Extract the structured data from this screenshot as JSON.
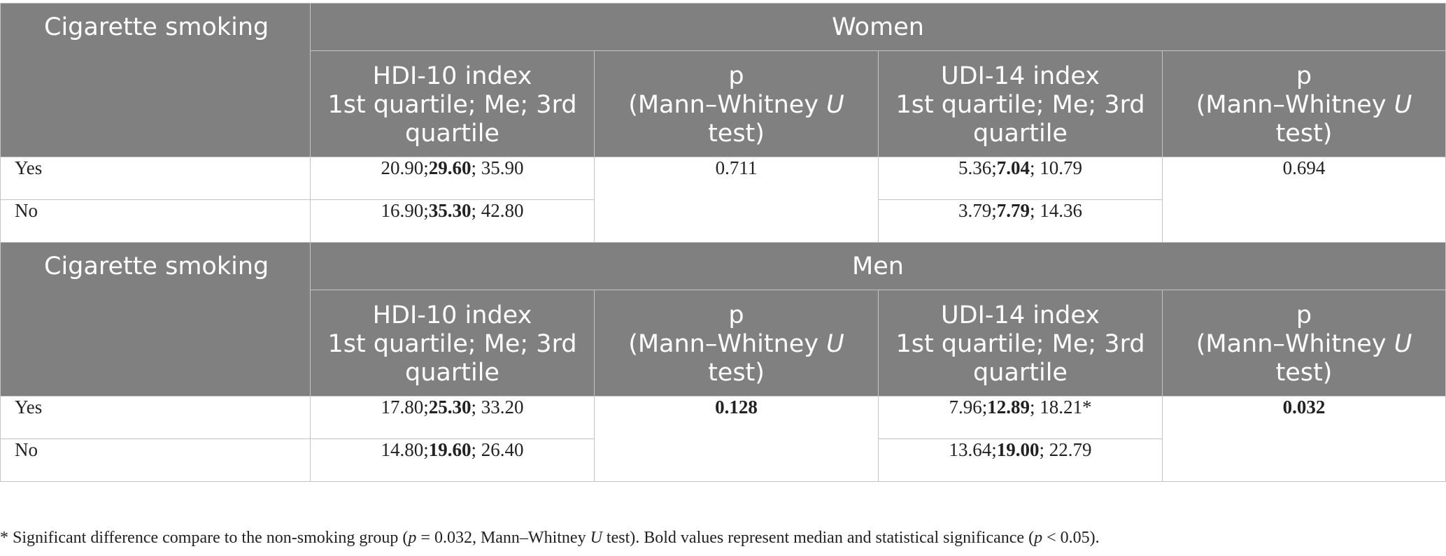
{
  "row_header": "Cigarette smoking",
  "sub_headers": {
    "hdi": [
      "HDI-10 index",
      "1st quartile; Me; 3rd",
      "quartile"
    ],
    "p": [
      "p",
      "(Mann–Whitney ",
      "U",
      "",
      "test)"
    ],
    "udi": [
      "UDI-14 index",
      "1st quartile; Me; 3rd",
      "quartile"
    ]
  },
  "sections": [
    {
      "group": "Women",
      "p_hdi": {
        "text": "0.711",
        "bold": false
      },
      "p_udi": {
        "text": "0.694",
        "bold": false
      },
      "rows": [
        {
          "label": "Yes",
          "hdi": {
            "q1": "20.90;",
            "me": "29.60",
            "q3": "; 35.90"
          },
          "udi": {
            "q1": "5.36;",
            "me": "7.04",
            "q3": "; 10.79"
          }
        },
        {
          "label": "No",
          "hdi": {
            "q1": "16.90;",
            "me": "35.30",
            "q3": "; 42.80"
          },
          "udi": {
            "q1": "3.79;",
            "me": "7.79",
            "q3": "; 14.36"
          }
        }
      ]
    },
    {
      "group": "Men",
      "p_hdi": {
        "text": "0.128",
        "bold": true
      },
      "p_udi": {
        "text": "0.032",
        "bold": true
      },
      "rows": [
        {
          "label": "Yes",
          "hdi": {
            "q1": "17.80;",
            "me": "25.30",
            "q3": "; 33.20"
          },
          "udi": {
            "q1": "7.96;",
            "me": "12.89",
            "q3": "; 18.21*"
          }
        },
        {
          "label": "No",
          "hdi": {
            "q1": "14.80;",
            "me": "19.60",
            "q3": "; 26.40"
          },
          "udi": {
            "q1": "13.64;",
            "me": "19.00",
            "q3": "; 22.79"
          }
        }
      ]
    }
  ],
  "footnote": {
    "a": "* Significant difference compare to the non-smoking group (",
    "p1": "p",
    "b": " = 0.032, Mann–Whitney ",
    "u": "U",
    "c": " test). Bold values represent median and statistical significance (",
    "p2": "p",
    "d": " < 0.05)."
  }
}
